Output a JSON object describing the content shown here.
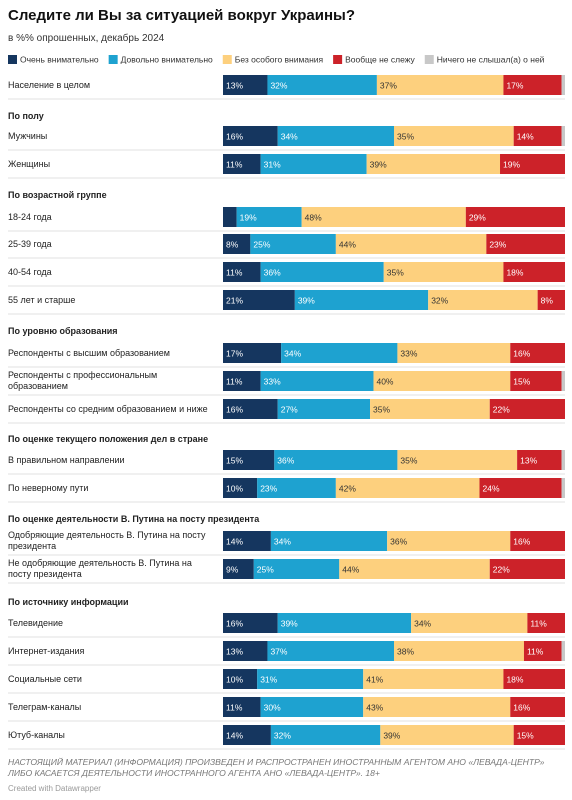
{
  "chart_data": {
    "type": "stacked-bar-horizontal",
    "title": "Следите ли Вы за ситуацией вокруг Украины?",
    "subtitle": "в %% опрошенных, декабрь 2024",
    "group_titles": [
      "По полу",
      "По возрастной группе",
      "По уровню образования",
      "По оценке текущего положения дел в стране",
      "По оценке деятельности В. Путина на посту президента",
      "По источнику информации"
    ],
    "categories": [
      "Население в целом",
      "Мужчины",
      "Женщины",
      "18-24 года",
      "25-39 года",
      "40-54 года",
      "55 лет и старше",
      "Респонденты с высшим образованием",
      "Респонденты с профессиональным образованием",
      "Респонденты со средним образованием и ниже",
      "В правильном направлении",
      "По неверному пути",
      "Одобряющие деятельность В. Путина на посту президента",
      "Не одобряющие деятельность В. Путина на посту президента",
      "Телевидение",
      "Интернет-издания",
      "Социальные сети",
      "Телеграм-каналы",
      "Ютуб-каналы"
    ],
    "series": [
      {
        "name": "Очень внимательно",
        "color": "#15365f",
        "values": [
          13,
          16,
          11,
          4,
          8,
          11,
          21,
          17,
          11,
          16,
          15,
          10,
          14,
          9,
          16,
          13,
          10,
          11,
          14
        ],
        "value_labels": [
          "13%",
          "16%",
          "11%",
          null,
          "8%",
          "11%",
          "21%",
          "17%",
          "11%",
          "16%",
          "15%",
          "10%",
          "14%",
          "9%",
          "16%",
          "13%",
          "10%",
          "11%",
          "14%"
        ]
      },
      {
        "name": "Довольно внимательно",
        "color": "#1ea2d0",
        "values": [
          32,
          34,
          31,
          19,
          25,
          36,
          39,
          34,
          33,
          27,
          36,
          23,
          34,
          25,
          39,
          37,
          31,
          30,
          32
        ],
        "value_labels": [
          "32%",
          "34%",
          "31%",
          "19%",
          "25%",
          "36%",
          "39%",
          "34%",
          "33%",
          "27%",
          "36%",
          "23%",
          "34%",
          "25%",
          "39%",
          "37%",
          "31%",
          "30%",
          "32%"
        ]
      },
      {
        "name": "Без особого внимания",
        "color": "#fdd07e",
        "values": [
          37,
          35,
          39,
          48,
          44,
          35,
          32,
          33,
          40,
          35,
          35,
          42,
          36,
          44,
          34,
          38,
          41,
          43,
          39
        ],
        "value_labels": [
          "37%",
          "35%",
          "39%",
          "48%",
          "44%",
          "35%",
          "32%",
          "33%",
          "40%",
          "35%",
          "35%",
          "42%",
          "36%",
          "44%",
          "34%",
          "38%",
          "41%",
          "43%",
          "39%"
        ]
      },
      {
        "name": "Вообще не слежу",
        "color": "#cc2229",
        "values": [
          17,
          14,
          19,
          29,
          23,
          18,
          8,
          16,
          15,
          22,
          13,
          24,
          16,
          22,
          11,
          11,
          18,
          16,
          15
        ],
        "value_labels": [
          "17%",
          "14%",
          "19%",
          "29%",
          "23%",
          "18%",
          "8%",
          "16%",
          "15%",
          "22%",
          "13%",
          "24%",
          "16%",
          "22%",
          "11%",
          "11%",
          "18%",
          "16%",
          "15%"
        ]
      },
      {
        "name": "Ничего не слышал(а) о ней",
        "color": "#c8c8c8",
        "values": [
          1,
          1,
          0,
          0,
          0,
          0,
          0,
          0,
          1,
          0,
          1,
          1,
          0,
          0,
          0,
          1,
          0,
          0,
          0
        ]
      }
    ],
    "xlim": [
      0,
      100
    ],
    "notes": "НАСТОЯЩИЙ МАТЕРИАЛ (ИНФОРМАЦИЯ) ПРОИЗВЕДЕН И РАСПРОСТРАНЕН ИНОСТРАННЫМ АГЕНТОМ АНО «ЛЕВАДА-ЦЕНТР» ЛИБО КАСАЕТСЯ ДЕЯТЕЛЬНОСТИ ИНОСТРАННОГО АГЕНТА АНО «ЛЕВАДА-ЦЕНТР». 18+",
    "credit": "Created with Datawrapper"
  }
}
